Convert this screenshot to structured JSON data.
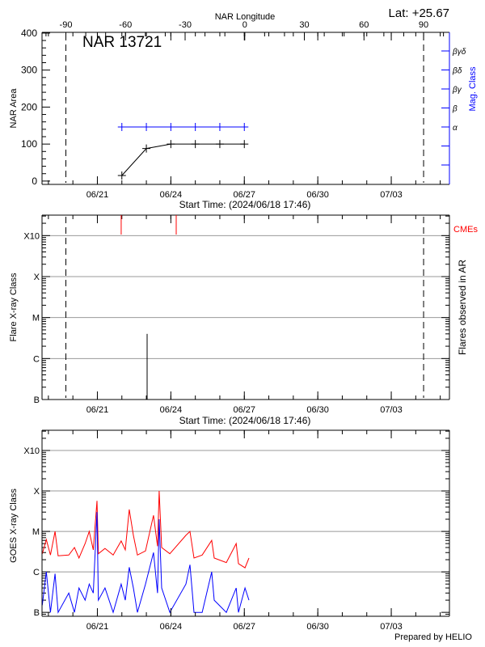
{
  "header": {
    "lat_label": "Lat: +25.67"
  },
  "footer": {
    "credit": "Prepared by HELIO"
  },
  "colors": {
    "area": "#000000",
    "mag_class": "#0000ff",
    "flare": "#000000",
    "cme": "#ff0000",
    "goes_long": "#ff0000",
    "goes_short": "#0000ff",
    "grid": "#999999",
    "limb_marker": "#000000"
  },
  "chart_data": [
    {
      "type": "line",
      "title": "NAR 13721",
      "xlabel": "Start Time: (2024/06/18 17:46)",
      "ylabel": "NAR Area",
      "y2label": "Mag. Class",
      "x2label": "NAR Longitude",
      "xlim": [
        "2024-06-18T17:46",
        "2024-07-05T09:00"
      ],
      "x_ticks": [
        {
          "date": "2024-06-21T00:00",
          "label": "06/21"
        },
        {
          "date": "2024-06-24T00:00",
          "label": "06/24"
        },
        {
          "date": "2024-06-27T00:00",
          "label": "06/27"
        },
        {
          "date": "2024-06-30T00:00",
          "label": "06/30"
        },
        {
          "date": "2024-07-03T00:00",
          "label": "07/03"
        }
      ],
      "x2lim": [
        -102,
        103
      ],
      "x2_ticks": [
        "-90",
        "-60",
        "-30",
        "0",
        "30",
        "60",
        "90"
      ],
      "limb_markers_longitude": [
        -90,
        90
      ],
      "ylim": [
        -9,
        402
      ],
      "y_ticks": [
        "0",
        "100",
        "200",
        "300",
        "400"
      ],
      "y2_ticks": [
        "",
        "",
        "α",
        "β",
        "βγ",
        "βδ",
        "βγδ"
      ],
      "series": [
        {
          "name": "NAR Area",
          "dates": [
            "2024-06-22T00:00",
            "2024-06-23T00:00",
            "2024-06-24T00:00",
            "2024-06-25T00:00",
            "2024-06-26T00:00",
            "2024-06-27T00:00"
          ],
          "values": [
            15,
            88,
            100,
            100,
            100,
            100
          ]
        },
        {
          "name": "Mag. Class",
          "dates": [
            "2024-06-22T00:00",
            "2024-06-23T00:00",
            "2024-06-24T00:00",
            "2024-06-25T00:00",
            "2024-06-26T00:00",
            "2024-06-27T00:00"
          ],
          "values": [
            "α",
            "α",
            "α",
            "α",
            "α",
            "α"
          ]
        }
      ],
      "grid": false
    },
    {
      "type": "bar",
      "xlabel": "Start Time: (2024/06/18 17:46)",
      "ylabel": "Flare X-ray Class",
      "y2label": "Flares observed in AR",
      "xlim": [
        "2024-06-18T17:46",
        "2024-07-05T09:00"
      ],
      "x_ticks": [
        "06/21",
        "06/24",
        "06/27",
        "06/30",
        "07/03"
      ],
      "ylim": [
        1e-07,
        0.00316
      ],
      "yscale": "log",
      "y_ticks": [
        "B",
        "C",
        "M",
        "X",
        "X10"
      ],
      "flares": [
        {
          "date": "2024-06-23T00:45",
          "flux": 4e-06
        }
      ],
      "cme_label": "CMEs",
      "cmes": [
        "2024-06-21T23:20",
        "2024-06-24T05:15"
      ],
      "grid": true
    },
    {
      "type": "line",
      "ylabel": "GOES X-ray Class",
      "xlim": [
        "2024-06-18T17:46",
        "2024-07-05T09:00"
      ],
      "x_ticks": [
        "06/21",
        "06/24",
        "06/27",
        "06/30",
        "07/03"
      ],
      "ylim": [
        8e-08,
        0.00316
      ],
      "yscale": "log",
      "y_ticks": [
        "B",
        "C",
        "M",
        "X",
        "X10"
      ],
      "grid": true,
      "dates": [
        "2024-06-18T18:00",
        "2024-06-18T22:00",
        "2024-06-19T02:00",
        "2024-06-19T06:30",
        "2024-06-19T09:30",
        "2024-06-19T20:00",
        "2024-06-20T01:30",
        "2024-06-20T06:00",
        "2024-06-20T12:00",
        "2024-06-20T16:00",
        "2024-06-20T20:00",
        "2024-06-20T23:40",
        "2024-06-21T01:00",
        "2024-06-21T07:30",
        "2024-06-21T15:30",
        "2024-06-21T23:20",
        "2024-06-22T03:20",
        "2024-06-22T07:15",
        "2024-06-22T11:15",
        "2024-06-22T15:15",
        "2024-06-22T23:10",
        "2024-06-23T07:00",
        "2024-06-23T11:00",
        "2024-06-23T12:35",
        "2024-06-23T15:00",
        "2024-06-23T23:00",
        "2024-06-24T14:45",
        "2024-06-24T18:45",
        "2024-06-24T22:40",
        "2024-06-25T06:40",
        "2024-06-25T16:00",
        "2024-06-25T18:30",
        "2024-06-26T06:20",
        "2024-06-26T16:00",
        "2024-06-26T18:15",
        "2024-06-27T00:40",
        "2024-06-27T04:35"
      ],
      "series": [
        {
          "values": [
            2.8e-06,
            6.3e-06,
            2.6e-06,
            1e-05,
            2.5e-06,
            2.6e-06,
            4e-06,
            2.2e-06,
            5e-06,
            1e-05,
            3.5e-06,
            5.7e-05,
            2.8e-06,
            3.8e-06,
            2.6e-06,
            5.8e-06,
            3.5e-06,
            3.5e-05,
            8e-06,
            2.6e-06,
            3.3e-06,
            2.5e-05,
            4.3e-06,
            0.0001,
            4e-06,
            2.8e-06,
            8e-06,
            1e-05,
            2.2e-06,
            2.6e-06,
            6e-06,
            2.2e-06,
            1.7e-06,
            5e-06,
            1.6e-06,
            1.26e-06,
            2.2e-06
          ]
        },
        {
          "values": [
            1.5e-07,
            1e-06,
            1e-07,
            9e-07,
            1e-07,
            3e-07,
            1e-07,
            4e-07,
            2e-07,
            5e-07,
            3e-07,
            3e-05,
            2e-07,
            4e-07,
            1e-07,
            5e-07,
            2e-07,
            1.3e-06,
            4e-07,
            1e-07,
            5e-07,
            3e-06,
            3e-07,
            2e-05,
            4e-07,
            1e-07,
            5e-07,
            1.5e-06,
            1e-07,
            1e-07,
            1e-06,
            2e-07,
            1e-07,
            4e-07,
            1e-07,
            4e-07,
            2e-07
          ]
        }
      ]
    }
  ]
}
